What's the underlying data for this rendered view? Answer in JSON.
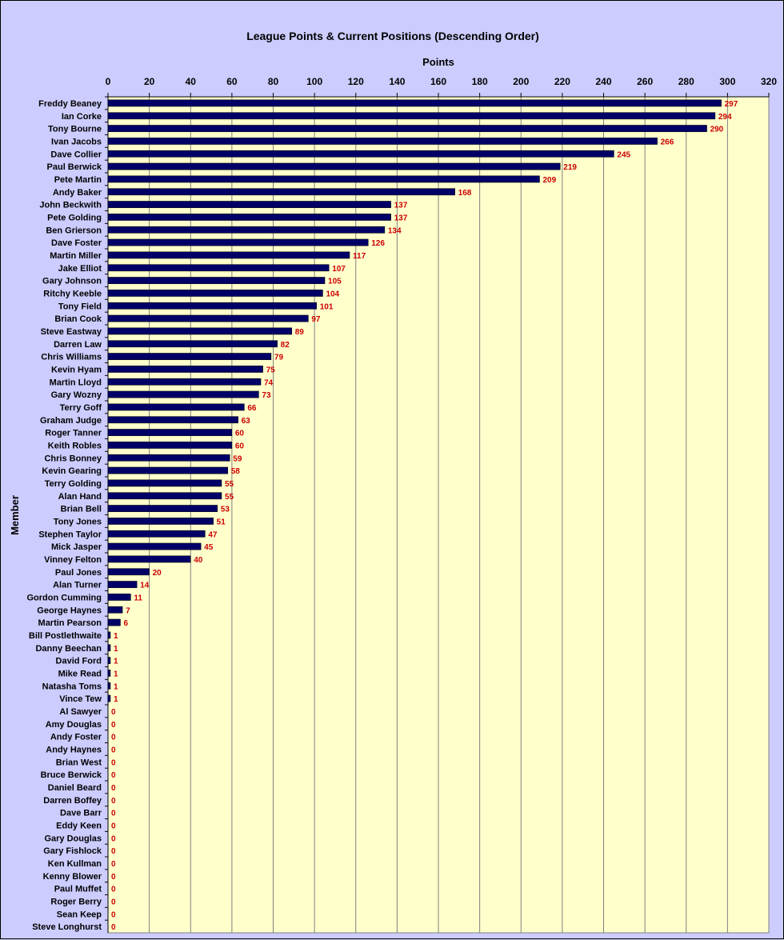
{
  "chart_data": {
    "type": "bar",
    "orientation": "horizontal",
    "title": "League Points & Current Positions (Descending Order)",
    "xlabel": "Points",
    "ylabel": "Member",
    "xlim": [
      0,
      320
    ],
    "xticks": [
      0,
      20,
      40,
      60,
      80,
      100,
      120,
      140,
      160,
      180,
      200,
      220,
      240,
      260,
      280,
      300,
      320
    ],
    "grid": true,
    "x_axis_position": "top",
    "legend": "none",
    "colors": {
      "background": "#ccccff",
      "plot_area": "#ffffcc",
      "bar": "#000066",
      "data_label": "#cc0000",
      "gridline": "#808080"
    },
    "categories": [
      "Freddy Beaney",
      "Ian Corke",
      "Tony Bourne",
      "Ivan Jacobs",
      "Dave Collier",
      "Paul Berwick",
      "Pete Martin",
      "Andy Baker",
      "John Beckwith",
      "Pete Golding",
      "Ben Grierson",
      "Dave Foster",
      "Martin Miller",
      "Jake Elliot",
      "Gary Johnson",
      "Ritchy Keeble",
      "Tony Field",
      "Brian Cook",
      "Steve Eastway",
      "Darren Law",
      "Chris Williams",
      "Kevin Hyam",
      "Martin Lloyd",
      "Gary Wozny",
      "Terry Goff",
      "Graham Judge",
      "Roger Tanner",
      "Keith Robles",
      "Chris Bonney",
      "Kevin Gearing",
      "Terry Golding",
      "Alan Hand",
      "Brian Bell",
      "Tony Jones",
      "Stephen Taylor",
      "Mick Jasper",
      "Vinney Felton",
      "Paul Jones",
      "Alan Turner",
      "Gordon Cumming",
      "George Haynes",
      "Martin Pearson",
      "Bill Postlethwaite",
      "Danny Beechan",
      "David Ford",
      "Mike Read",
      "Natasha Toms",
      "Vince Tew",
      "Al Sawyer",
      "Amy Douglas",
      "Andy Foster",
      "Andy Haynes",
      "Brian West",
      "Bruce Berwick",
      "Daniel Beard",
      "Darren Boffey",
      "Dave Barr",
      "Eddy Keen",
      "Gary Douglas",
      "Gary Fishlock",
      "Ken Kullman",
      "Kenny Blower",
      "Paul Muffet",
      "Roger Berry",
      "Sean Keep",
      "Steve Longhurst"
    ],
    "values": [
      297,
      294,
      290,
      266,
      245,
      219,
      209,
      168,
      137,
      137,
      134,
      126,
      117,
      107,
      105,
      104,
      101,
      97,
      89,
      82,
      79,
      75,
      74,
      73,
      66,
      63,
      60,
      60,
      59,
      58,
      55,
      55,
      53,
      51,
      47,
      45,
      40,
      20,
      14,
      11,
      7,
      6,
      1,
      1,
      1,
      1,
      1,
      1,
      0,
      0,
      0,
      0,
      0,
      0,
      0,
      0,
      0,
      0,
      0,
      0,
      0,
      0,
      0,
      0,
      0,
      0
    ]
  }
}
